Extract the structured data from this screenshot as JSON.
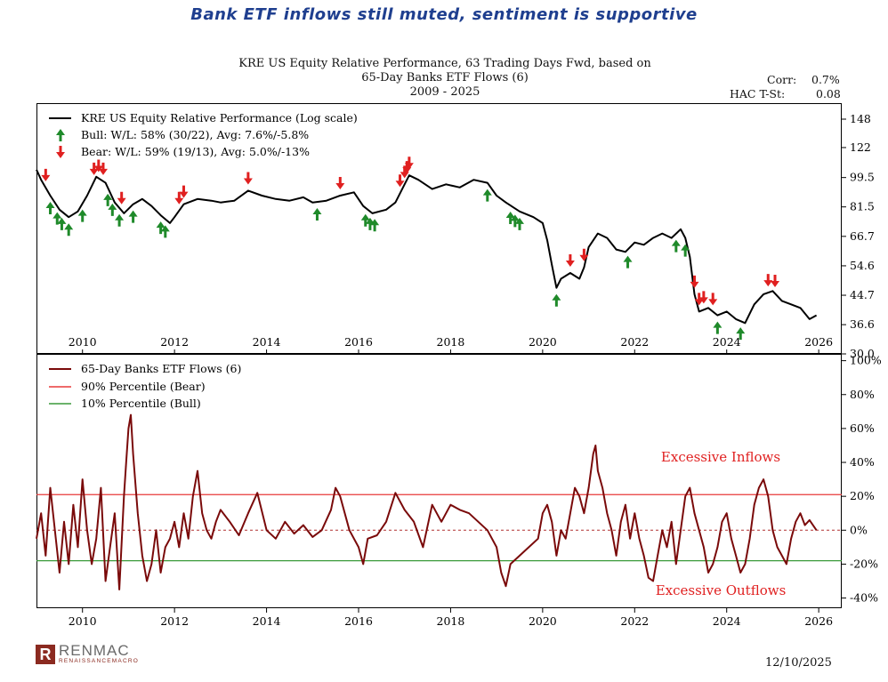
{
  "headline": "Bank ETF inflows still muted, sentiment is supportive",
  "title_lines": [
    "KRE US Equity Relative Performance, 63 Trading Days Fwd, based on",
    "65-Day Banks ETF Flows (6)",
    "2009 - 2025"
  ],
  "stats": {
    "corr_label": "Corr:",
    "corr_value": "0.7%",
    "t_label": "HAC T-St:",
    "t_value": "0.08"
  },
  "footer": {
    "logo_mark": "R",
    "logo_name": "RENMAC",
    "logo_sub": "RENAISSANCEMACRO",
    "date": "12/10/2025"
  },
  "colors": {
    "perf": "#000000",
    "flows": "#7a0a0a",
    "bear_line": "#e83a3a",
    "bull_line": "#3a9a3a",
    "bull_arrow": "#1f8a2a",
    "bear_arrow": "#e02020",
    "zero_line": "#b03030"
  },
  "chart_data": [
    {
      "type": "line",
      "title": "KRE US Equity Relative Performance, 63 Trading Days Fwd, based on 65-Day Banks ETF Flows (6)",
      "scale": "log",
      "xlim": [
        2009.0,
        2026.5
      ],
      "ylim": [
        30.0,
        165
      ],
      "x_ticks": [
        "2010",
        "2012",
        "2014",
        "2016",
        "2018",
        "2020",
        "2022",
        "2024",
        "2026"
      ],
      "y_ticks": [
        {
          "v": 148,
          "label": "148"
        },
        {
          "v": 122,
          "label": "122"
        },
        {
          "v": 99.5,
          "label": "99.5"
        },
        {
          "v": 81.5,
          "label": "81.5"
        },
        {
          "v": 66.7,
          "label": "66.7"
        },
        {
          "v": 54.6,
          "label": "54.6"
        },
        {
          "v": 44.7,
          "label": "44.7"
        },
        {
          "v": 36.6,
          "label": "36.6"
        },
        {
          "v": 30.0,
          "label": "30.0"
        }
      ],
      "legend": [
        {
          "kind": "line",
          "label": "KRE US Equity Relative Performance (Log scale)"
        },
        {
          "kind": "bull",
          "label": "Bull:  W/L: 58% (30/22), Avg: 7.6%/-5.8%"
        },
        {
          "kind": "bear",
          "label": "Bear:  W/L: 59% (19/13), Avg: 5.0%/-13%"
        }
      ],
      "series": [
        {
          "name": "KRE US Equity Relative Performance (Log scale)",
          "points": [
            [
              2009.0,
              105
            ],
            [
              2009.1,
              98
            ],
            [
              2009.3,
              88
            ],
            [
              2009.5,
              80
            ],
            [
              2009.7,
              76
            ],
            [
              2009.9,
              79
            ],
            [
              2010.1,
              88
            ],
            [
              2010.3,
              100
            ],
            [
              2010.5,
              96
            ],
            [
              2010.7,
              84
            ],
            [
              2010.9,
              78
            ],
            [
              2011.1,
              83
            ],
            [
              2011.3,
              86
            ],
            [
              2011.5,
              82
            ],
            [
              2011.7,
              77
            ],
            [
              2011.9,
              73
            ],
            [
              2012.0,
              76
            ],
            [
              2012.2,
              83
            ],
            [
              2012.5,
              86
            ],
            [
              2012.8,
              85
            ],
            [
              2013.0,
              84
            ],
            [
              2013.3,
              85
            ],
            [
              2013.6,
              91
            ],
            [
              2013.9,
              88
            ],
            [
              2014.2,
              86
            ],
            [
              2014.5,
              85
            ],
            [
              2014.8,
              87
            ],
            [
              2015.0,
              84
            ],
            [
              2015.3,
              85
            ],
            [
              2015.6,
              88
            ],
            [
              2015.9,
              90
            ],
            [
              2016.1,
              82
            ],
            [
              2016.3,
              78
            ],
            [
              2016.6,
              80
            ],
            [
              2016.8,
              84
            ],
            [
              2017.0,
              95
            ],
            [
              2017.1,
              101
            ],
            [
              2017.3,
              98
            ],
            [
              2017.6,
              92
            ],
            [
              2017.9,
              95
            ],
            [
              2018.2,
              93
            ],
            [
              2018.5,
              98
            ],
            [
              2018.8,
              96
            ],
            [
              2019.0,
              88
            ],
            [
              2019.2,
              84
            ],
            [
              2019.5,
              79
            ],
            [
              2019.8,
              76
            ],
            [
              2020.0,
              73
            ],
            [
              2020.1,
              65
            ],
            [
              2020.2,
              55
            ],
            [
              2020.3,
              47
            ],
            [
              2020.4,
              50
            ],
            [
              2020.6,
              52
            ],
            [
              2020.8,
              50
            ],
            [
              2020.9,
              54
            ],
            [
              2021.0,
              62
            ],
            [
              2021.2,
              68
            ],
            [
              2021.4,
              66
            ],
            [
              2021.6,
              61
            ],
            [
              2021.8,
              60
            ],
            [
              2022.0,
              64
            ],
            [
              2022.2,
              63
            ],
            [
              2022.4,
              66
            ],
            [
              2022.6,
              68
            ],
            [
              2022.8,
              66
            ],
            [
              2023.0,
              70
            ],
            [
              2023.1,
              66
            ],
            [
              2023.2,
              58
            ],
            [
              2023.3,
              45
            ],
            [
              2023.4,
              40
            ],
            [
              2023.6,
              41
            ],
            [
              2023.8,
              39
            ],
            [
              2024.0,
              40
            ],
            [
              2024.2,
              38
            ],
            [
              2024.4,
              37
            ],
            [
              2024.6,
              42
            ],
            [
              2024.8,
              45
            ],
            [
              2025.0,
              46
            ],
            [
              2025.2,
              43
            ],
            [
              2025.4,
              42
            ],
            [
              2025.6,
              41
            ],
            [
              2025.8,
              38
            ],
            [
              2025.95,
              39
            ]
          ]
        }
      ]
    },
    {
      "type": "line",
      "title": "65-Day Banks ETF Flows (6)",
      "xlim": [
        2009.0,
        2026.5
      ],
      "ylim": [
        -46,
        104
      ],
      "x_ticks": [
        "2010",
        "2012",
        "2014",
        "2016",
        "2018",
        "2020",
        "2022",
        "2024",
        "2026"
      ],
      "y_ticks": [
        {
          "v": 100,
          "label": "100%"
        },
        {
          "v": 80,
          "label": "80%"
        },
        {
          "v": 60,
          "label": "60%"
        },
        {
          "v": 40,
          "label": "40%"
        },
        {
          "v": 20,
          "label": "20%"
        },
        {
          "v": 0,
          "label": "0%"
        },
        {
          "v": -20,
          "label": "-20%"
        },
        {
          "v": -40,
          "label": "-40%"
        }
      ],
      "bear_threshold": 21,
      "bull_threshold": -18,
      "legend": [
        {
          "kind": "flow",
          "label": "65-Day Banks ETF Flows (6)"
        },
        {
          "kind": "bear",
          "label": "90% Percentile (Bear)"
        },
        {
          "kind": "bull",
          "label": "10% Percentile (Bull)"
        }
      ],
      "annotations": {
        "inflows": "Excessive Inflows",
        "outflows": "Excessive Outflows"
      },
      "series": [
        {
          "name": "65-Day Banks ETF Flows (6)",
          "points": [
            [
              2009.0,
              -5
            ],
            [
              2009.1,
              10
            ],
            [
              2009.2,
              -15
            ],
            [
              2009.3,
              25
            ],
            [
              2009.4,
              0
            ],
            [
              2009.5,
              -25
            ],
            [
              2009.6,
              5
            ],
            [
              2009.7,
              -20
            ],
            [
              2009.8,
              15
            ],
            [
              2009.9,
              -10
            ],
            [
              2010.0,
              30
            ],
            [
              2010.1,
              0
            ],
            [
              2010.2,
              -20
            ],
            [
              2010.3,
              -5
            ],
            [
              2010.4,
              25
            ],
            [
              2010.5,
              -30
            ],
            [
              2010.6,
              -10
            ],
            [
              2010.7,
              10
            ],
            [
              2010.8,
              -35
            ],
            [
              2010.9,
              20
            ],
            [
              2010.95,
              40
            ],
            [
              2011.0,
              60
            ],
            [
              2011.05,
              68
            ],
            [
              2011.1,
              45
            ],
            [
              2011.2,
              10
            ],
            [
              2011.3,
              -15
            ],
            [
              2011.4,
              -30
            ],
            [
              2011.5,
              -20
            ],
            [
              2011.6,
              0
            ],
            [
              2011.7,
              -25
            ],
            [
              2011.8,
              -10
            ],
            [
              2011.9,
              -5
            ],
            [
              2012.0,
              5
            ],
            [
              2012.1,
              -10
            ],
            [
              2012.2,
              10
            ],
            [
              2012.3,
              -5
            ],
            [
              2012.4,
              20
            ],
            [
              2012.5,
              35
            ],
            [
              2012.6,
              10
            ],
            [
              2012.7,
              0
            ],
            [
              2012.8,
              -5
            ],
            [
              2012.9,
              5
            ],
            [
              2013.0,
              12
            ],
            [
              2013.2,
              5
            ],
            [
              2013.4,
              -3
            ],
            [
              2013.6,
              10
            ],
            [
              2013.8,
              22
            ],
            [
              2014.0,
              0
            ],
            [
              2014.2,
              -5
            ],
            [
              2014.4,
              5
            ],
            [
              2014.6,
              -2
            ],
            [
              2014.8,
              3
            ],
            [
              2015.0,
              -4
            ],
            [
              2015.2,
              0
            ],
            [
              2015.4,
              12
            ],
            [
              2015.5,
              25
            ],
            [
              2015.6,
              20
            ],
            [
              2015.8,
              0
            ],
            [
              2016.0,
              -10
            ],
            [
              2016.1,
              -20
            ],
            [
              2016.2,
              -5
            ],
            [
              2016.4,
              -3
            ],
            [
              2016.6,
              5
            ],
            [
              2016.8,
              22
            ],
            [
              2017.0,
              12
            ],
            [
              2017.2,
              5
            ],
            [
              2017.4,
              -10
            ],
            [
              2017.6,
              15
            ],
            [
              2017.8,
              5
            ],
            [
              2018.0,
              15
            ],
            [
              2018.2,
              12
            ],
            [
              2018.4,
              10
            ],
            [
              2018.6,
              5
            ],
            [
              2018.8,
              0
            ],
            [
              2019.0,
              -10
            ],
            [
              2019.1,
              -25
            ],
            [
              2019.2,
              -33
            ],
            [
              2019.3,
              -20
            ],
            [
              2019.5,
              -15
            ],
            [
              2019.7,
              -10
            ],
            [
              2019.9,
              -5
            ],
            [
              2020.0,
              10
            ],
            [
              2020.1,
              15
            ],
            [
              2020.2,
              5
            ],
            [
              2020.3,
              -15
            ],
            [
              2020.4,
              0
            ],
            [
              2020.5,
              -5
            ],
            [
              2020.6,
              10
            ],
            [
              2020.7,
              25
            ],
            [
              2020.8,
              20
            ],
            [
              2020.9,
              10
            ],
            [
              2021.0,
              25
            ],
            [
              2021.1,
              45
            ],
            [
              2021.15,
              50
            ],
            [
              2021.2,
              35
            ],
            [
              2021.3,
              25
            ],
            [
              2021.4,
              10
            ],
            [
              2021.5,
              0
            ],
            [
              2021.6,
              -15
            ],
            [
              2021.7,
              5
            ],
            [
              2021.8,
              15
            ],
            [
              2021.9,
              -5
            ],
            [
              2022.0,
              10
            ],
            [
              2022.1,
              -5
            ],
            [
              2022.2,
              -15
            ],
            [
              2022.3,
              -28
            ],
            [
              2022.4,
              -30
            ],
            [
              2022.5,
              -15
            ],
            [
              2022.6,
              0
            ],
            [
              2022.7,
              -10
            ],
            [
              2022.8,
              5
            ],
            [
              2022.9,
              -20
            ],
            [
              2023.0,
              0
            ],
            [
              2023.1,
              20
            ],
            [
              2023.2,
              25
            ],
            [
              2023.3,
              10
            ],
            [
              2023.4,
              0
            ],
            [
              2023.5,
              -10
            ],
            [
              2023.6,
              -25
            ],
            [
              2023.7,
              -20
            ],
            [
              2023.8,
              -10
            ],
            [
              2023.9,
              5
            ],
            [
              2024.0,
              10
            ],
            [
              2024.1,
              -5
            ],
            [
              2024.2,
              -15
            ],
            [
              2024.3,
              -25
            ],
            [
              2024.4,
              -20
            ],
            [
              2024.5,
              -5
            ],
            [
              2024.6,
              15
            ],
            [
              2024.7,
              25
            ],
            [
              2024.8,
              30
            ],
            [
              2024.9,
              20
            ],
            [
              2025.0,
              0
            ],
            [
              2025.1,
              -10
            ],
            [
              2025.2,
              -15
            ],
            [
              2025.3,
              -20
            ],
            [
              2025.4,
              -5
            ],
            [
              2025.5,
              5
            ],
            [
              2025.6,
              10
            ],
            [
              2025.7,
              3
            ],
            [
              2025.8,
              6
            ],
            [
              2025.95,
              0
            ]
          ]
        }
      ]
    }
  ],
  "signals": {
    "bull": [
      2009.3,
      2009.45,
      2009.55,
      2009.7,
      2010.0,
      2010.55,
      2010.65,
      2010.8,
      2011.1,
      2011.7,
      2011.8,
      2015.1,
      2016.15,
      2016.25,
      2016.35,
      2018.8,
      2019.3,
      2019.4,
      2019.5,
      2020.3,
      2021.85,
      2022.9,
      2023.1,
      2023.8,
      2024.3
    ],
    "bear": [
      2009.2,
      2010.25,
      2010.35,
      2010.45,
      2010.85,
      2012.1,
      2012.2,
      2013.6,
      2015.6,
      2016.9,
      2017.0,
      2017.05,
      2017.1,
      2020.6,
      2020.9,
      2023.3,
      2023.4,
      2023.5,
      2023.7,
      2024.9,
      2025.05
    ]
  }
}
